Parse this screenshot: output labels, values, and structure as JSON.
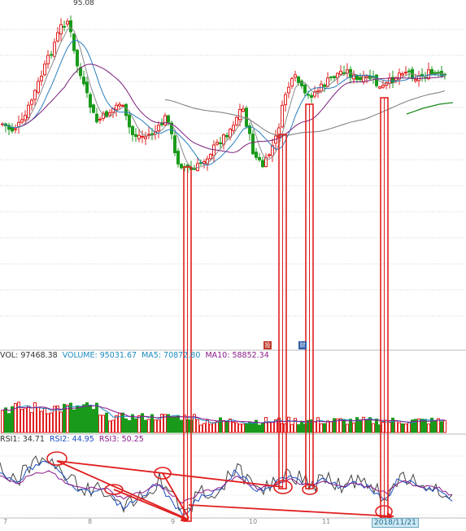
{
  "chart_data": {
    "type": "candlestick",
    "price_panel": {
      "peak_label": "95.08",
      "ma_colors": {
        "ma5": "#8a8a8a",
        "ma10": "#2a7fbf",
        "ma20": "#7a1f7a",
        "ma60": "#7a7a7a",
        "ma120": "#1a8a1a"
      },
      "up_color": "#e02020",
      "down_color": "#1a9a1a"
    },
    "volume_legend": [
      {
        "text": "VOL: 97468.38",
        "color": "#333333"
      },
      {
        "text": "VOLUME: 95031.67",
        "color": "#1a8ac0"
      },
      {
        "text": "MA5: 70872.80",
        "color": "#1a8ac0"
      },
      {
        "text": "MA10: 58852.34",
        "color": "#8a1a8a"
      }
    ],
    "rsi_legend": [
      {
        "text": "RSI1: 34.71",
        "color": "#333333"
      },
      {
        "text": "RSI2: 44.95",
        "color": "#1a4fc0"
      },
      {
        "text": "RSI3: 50.25",
        "color": "#8a1a8a"
      }
    ],
    "month_ticks": [
      "7",
      "8",
      "9",
      "10",
      "11"
    ],
    "date_label": "2018/11/21",
    "badges": [
      "投",
      "财"
    ],
    "annotation_color": "#e02020"
  }
}
